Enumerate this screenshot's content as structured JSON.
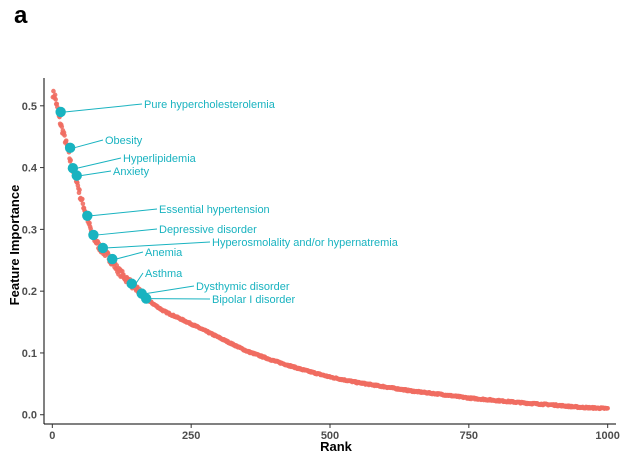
{
  "panel_label": "a",
  "colors": {
    "main_points": "#f06d62",
    "highlight": "#19b3c0",
    "axis": "#000000",
    "tick_text": "#4d4d4d"
  },
  "chart_data": {
    "type": "scatter",
    "title": "",
    "xlabel": "Rank",
    "ylabel": "Feature Importance",
    "xlim": [
      -15,
      1015
    ],
    "ylim": [
      -0.015,
      0.545
    ],
    "x_ticks": [
      0,
      250,
      500,
      750,
      1000
    ],
    "y_ticks": [
      0.0,
      0.1,
      0.2,
      0.3,
      0.4,
      0.5
    ],
    "x_tick_labels": [
      "0",
      "250",
      "500",
      "750",
      "1000"
    ],
    "y_tick_labels": [
      "0.0",
      "0.1",
      "0.2",
      "0.3",
      "0.4",
      "0.5"
    ],
    "grid": false,
    "series": [
      {
        "type": "scatter",
        "color": "#f06d62",
        "curve_anchors": [
          [
            1,
            0.52
          ],
          [
            5,
            0.515
          ],
          [
            10,
            0.49
          ],
          [
            15,
            0.47
          ],
          [
            20,
            0.455
          ],
          [
            27,
            0.432
          ],
          [
            35,
            0.4
          ],
          [
            42,
            0.387
          ],
          [
            50,
            0.355
          ],
          [
            62,
            0.322
          ],
          [
            72,
            0.29
          ],
          [
            86,
            0.27
          ],
          [
            100,
            0.257
          ],
          [
            120,
            0.232
          ],
          [
            141,
            0.213
          ],
          [
            160,
            0.196
          ],
          [
            168,
            0.188
          ],
          [
            200,
            0.168
          ],
          [
            250,
            0.147
          ],
          [
            300,
            0.125
          ],
          [
            350,
            0.103
          ],
          [
            400,
            0.087
          ],
          [
            450,
            0.073
          ],
          [
            500,
            0.061
          ],
          [
            550,
            0.052
          ],
          [
            600,
            0.045
          ],
          [
            650,
            0.038
          ],
          [
            700,
            0.033
          ],
          [
            750,
            0.027
          ],
          [
            800,
            0.023
          ],
          [
            850,
            0.019
          ],
          [
            900,
            0.016
          ],
          [
            950,
            0.012
          ],
          [
            1000,
            0.01
          ]
        ]
      }
    ],
    "highlighted": [
      {
        "label": "Pure hypercholesterolemia",
        "x": 15,
        "y": 0.49
      },
      {
        "label": "Obesity",
        "x": 32,
        "y": 0.432
      },
      {
        "label": "Hyperlipidemia",
        "x": 37,
        "y": 0.399
      },
      {
        "label": "Anxiety",
        "x": 44,
        "y": 0.387
      },
      {
        "label": "Essential hypertension",
        "x": 63,
        "y": 0.322
      },
      {
        "label": "Depressive disorder",
        "x": 74,
        "y": 0.291
      },
      {
        "label": "Hyperosmolality and/or hypernatremia",
        "x": 91,
        "y": 0.27
      },
      {
        "label": "Anemia",
        "x": 108,
        "y": 0.252
      },
      {
        "label": "Asthma",
        "x": 143,
        "y": 0.212
      },
      {
        "label": "Dysthymic disorder",
        "x": 161,
        "y": 0.196
      },
      {
        "label": "Bipolar I disorder",
        "x": 169,
        "y": 0.188
      }
    ]
  }
}
